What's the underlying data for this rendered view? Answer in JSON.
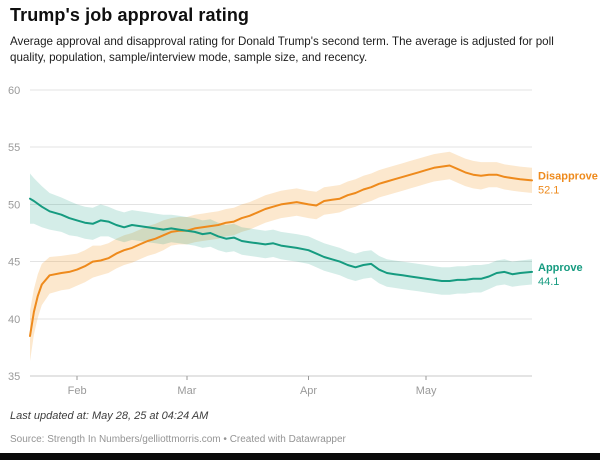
{
  "header": {
    "title": "Trump's job approval rating",
    "subtitle": "Average approval and disapproval rating for Donald Trump's second term. The average is adjusted for poll quality, population, sample/interview mode, sample size, and recency."
  },
  "chart_data": {
    "type": "line",
    "title": "Trump's job approval rating",
    "xlabel": "",
    "ylabel": "",
    "ylim": [
      35,
      60
    ],
    "y_ticks": [
      35,
      40,
      45,
      50,
      55,
      60
    ],
    "x_unit": "days since Jan 20",
    "x_max": 128,
    "x_ticks": [
      {
        "day": 12,
        "label": "Feb"
      },
      {
        "day": 40,
        "label": "Mar"
      },
      {
        "day": 71,
        "label": "Apr"
      },
      {
        "day": 101,
        "label": "May"
      }
    ],
    "grid": "horizontal",
    "legend_position": "right-edge-labels",
    "series": [
      {
        "id": "disapprove",
        "name": "Disapprove",
        "label_value": "52.1",
        "color": "#ee8a1c",
        "band_color": "rgba(243,166,66,0.26)",
        "points": [
          [
            0,
            38.5,
            2.2
          ],
          [
            1,
            40.6,
            2.0
          ],
          [
            2,
            42.0,
            1.9
          ],
          [
            3,
            43.0,
            1.8
          ],
          [
            5,
            43.8,
            1.6
          ],
          [
            8,
            44.0,
            1.5
          ],
          [
            10,
            44.1,
            1.5
          ],
          [
            12,
            44.3,
            1.4
          ],
          [
            14,
            44.6,
            1.4
          ],
          [
            16,
            45.0,
            1.4
          ],
          [
            18,
            45.1,
            1.3
          ],
          [
            20,
            45.3,
            1.3
          ],
          [
            22,
            45.7,
            1.3
          ],
          [
            24,
            46.0,
            1.3
          ],
          [
            26,
            46.2,
            1.3
          ],
          [
            28,
            46.5,
            1.3
          ],
          [
            30,
            46.8,
            1.3
          ],
          [
            32,
            47.0,
            1.3
          ],
          [
            34,
            47.3,
            1.3
          ],
          [
            36,
            47.6,
            1.2
          ],
          [
            38,
            47.7,
            1.2
          ],
          [
            40,
            47.7,
            1.2
          ],
          [
            42,
            47.9,
            1.2
          ],
          [
            44,
            48.0,
            1.2
          ],
          [
            46,
            48.1,
            1.2
          ],
          [
            48,
            48.2,
            1.2
          ],
          [
            50,
            48.4,
            1.2
          ],
          [
            52,
            48.5,
            1.2
          ],
          [
            54,
            48.8,
            1.2
          ],
          [
            56,
            49.0,
            1.2
          ],
          [
            58,
            49.3,
            1.2
          ],
          [
            60,
            49.6,
            1.2
          ],
          [
            62,
            49.8,
            1.2
          ],
          [
            64,
            50.0,
            1.2
          ],
          [
            66,
            50.1,
            1.2
          ],
          [
            68,
            50.2,
            1.2
          ],
          [
            71,
            50.0,
            1.2
          ],
          [
            73,
            49.9,
            1.2
          ],
          [
            75,
            50.3,
            1.2
          ],
          [
            77,
            50.4,
            1.2
          ],
          [
            79,
            50.5,
            1.2
          ],
          [
            81,
            50.8,
            1.2
          ],
          [
            83,
            51.0,
            1.2
          ],
          [
            85,
            51.3,
            1.2
          ],
          [
            87,
            51.5,
            1.2
          ],
          [
            89,
            51.8,
            1.2
          ],
          [
            91,
            52.0,
            1.2
          ],
          [
            93,
            52.2,
            1.2
          ],
          [
            95,
            52.4,
            1.2
          ],
          [
            97,
            52.6,
            1.2
          ],
          [
            99,
            52.8,
            1.2
          ],
          [
            101,
            53.0,
            1.2
          ],
          [
            103,
            53.2,
            1.2
          ],
          [
            105,
            53.3,
            1.2
          ],
          [
            107,
            53.4,
            1.2
          ],
          [
            109,
            53.1,
            1.2
          ],
          [
            111,
            52.8,
            1.2
          ],
          [
            113,
            52.6,
            1.2
          ],
          [
            115,
            52.5,
            1.2
          ],
          [
            117,
            52.6,
            1.1
          ],
          [
            119,
            52.6,
            1.1
          ],
          [
            121,
            52.4,
            1.1
          ],
          [
            123,
            52.3,
            1.1
          ],
          [
            125,
            52.2,
            1.1
          ],
          [
            128,
            52.1,
            1.1
          ]
        ]
      },
      {
        "id": "approve",
        "name": "Approve",
        "label_value": "44.1",
        "color": "#169b80",
        "band_color": "rgba(42,164,140,0.20)",
        "points": [
          [
            0,
            50.5,
            2.2
          ],
          [
            1,
            50.3,
            2.0
          ],
          [
            3,
            49.8,
            1.8
          ],
          [
            5,
            49.4,
            1.6
          ],
          [
            8,
            49.1,
            1.5
          ],
          [
            10,
            48.8,
            1.5
          ],
          [
            12,
            48.6,
            1.4
          ],
          [
            14,
            48.4,
            1.4
          ],
          [
            16,
            48.3,
            1.4
          ],
          [
            18,
            48.6,
            1.4
          ],
          [
            20,
            48.5,
            1.3
          ],
          [
            22,
            48.2,
            1.3
          ],
          [
            24,
            48.0,
            1.3
          ],
          [
            26,
            48.2,
            1.3
          ],
          [
            28,
            48.1,
            1.3
          ],
          [
            30,
            48.0,
            1.3
          ],
          [
            32,
            47.9,
            1.3
          ],
          [
            34,
            47.8,
            1.3
          ],
          [
            36,
            47.9,
            1.2
          ],
          [
            38,
            47.8,
            1.2
          ],
          [
            40,
            47.7,
            1.2
          ],
          [
            42,
            47.6,
            1.2
          ],
          [
            44,
            47.4,
            1.2
          ],
          [
            46,
            47.5,
            1.2
          ],
          [
            48,
            47.2,
            1.2
          ],
          [
            50,
            47.0,
            1.2
          ],
          [
            52,
            47.1,
            1.2
          ],
          [
            54,
            46.8,
            1.2
          ],
          [
            56,
            46.7,
            1.2
          ],
          [
            58,
            46.6,
            1.2
          ],
          [
            60,
            46.5,
            1.2
          ],
          [
            62,
            46.6,
            1.2
          ],
          [
            64,
            46.4,
            1.2
          ],
          [
            66,
            46.3,
            1.2
          ],
          [
            68,
            46.2,
            1.2
          ],
          [
            71,
            46.0,
            1.2
          ],
          [
            73,
            45.7,
            1.2
          ],
          [
            75,
            45.4,
            1.2
          ],
          [
            77,
            45.2,
            1.2
          ],
          [
            79,
            45.0,
            1.2
          ],
          [
            81,
            44.7,
            1.2
          ],
          [
            83,
            44.5,
            1.2
          ],
          [
            85,
            44.7,
            1.2
          ],
          [
            87,
            44.8,
            1.2
          ],
          [
            89,
            44.3,
            1.2
          ],
          [
            91,
            44.0,
            1.2
          ],
          [
            93,
            43.9,
            1.2
          ],
          [
            95,
            43.8,
            1.2
          ],
          [
            97,
            43.7,
            1.2
          ],
          [
            99,
            43.6,
            1.2
          ],
          [
            101,
            43.5,
            1.2
          ],
          [
            103,
            43.4,
            1.2
          ],
          [
            105,
            43.3,
            1.2
          ],
          [
            107,
            43.3,
            1.2
          ],
          [
            109,
            43.4,
            1.2
          ],
          [
            111,
            43.4,
            1.2
          ],
          [
            113,
            43.5,
            1.2
          ],
          [
            115,
            43.5,
            1.2
          ],
          [
            117,
            43.7,
            1.1
          ],
          [
            119,
            44.0,
            1.1
          ],
          [
            121,
            44.1,
            1.1
          ],
          [
            123,
            43.9,
            1.1
          ],
          [
            125,
            44.0,
            1.1
          ],
          [
            128,
            44.1,
            1.1
          ]
        ]
      }
    ],
    "colors": {
      "grid": "#e3e3e3",
      "baseline": "#c9c9c9",
      "axis_text": "#9a9a9a"
    }
  },
  "footer": {
    "last_updated": "Last updated at: May 28, 25 at 04:24 AM",
    "source": "Source: Strength In Numbers/gelliottmorris.com • Created with Datawrapper"
  }
}
